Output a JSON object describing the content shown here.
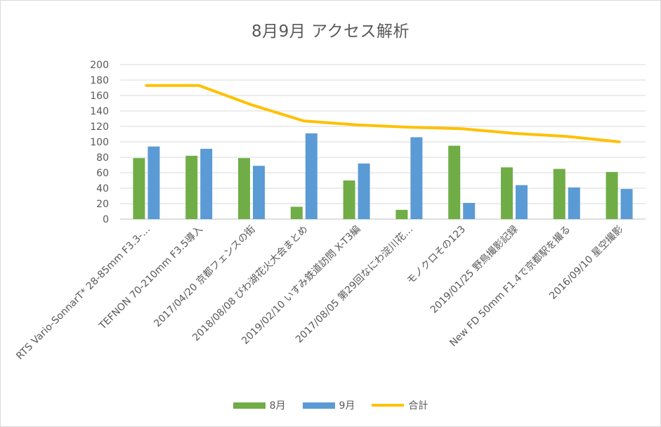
{
  "chart_data": {
    "type": "bar",
    "title": "8月9月 アクセス解析",
    "categories": [
      "RTS Vario-SonnarT* 28-85mm F3.3-…",
      "TEFNON 70-210mm F3.5導入",
      "2017/04/20 京都フェンスの街",
      "2018/08/08 びわ湖花火大会まとめ",
      "2019/02/10 いすみ鉄道訪問 X-T3編",
      "2017/08/05 第29回なにわ淀川花…",
      "モノクロその123",
      "2019/01/25 野鳥撮影記録",
      "New FD 50mm F1.4で京都駅を撮る",
      "2016/09/10 星空撮影"
    ],
    "series": [
      {
        "name": "8月",
        "type": "bar",
        "color": "#70ad47",
        "values": [
          79,
          82,
          79,
          16,
          50,
          12,
          95,
          67,
          65,
          61
        ]
      },
      {
        "name": "9月",
        "type": "bar",
        "color": "#5b9bd5",
        "values": [
          94,
          91,
          69,
          111,
          72,
          106,
          21,
          44,
          41,
          39
        ]
      },
      {
        "name": "合計",
        "type": "line",
        "color": "#ffc000",
        "values": [
          173,
          173,
          148,
          127,
          122,
          119,
          117,
          111,
          107,
          100
        ]
      }
    ],
    "y_ticks": [
      "0",
      "20",
      "40",
      "60",
      "80",
      "100",
      "120",
      "140",
      "160",
      "180",
      "200"
    ],
    "ylim": [
      0,
      200
    ],
    "grid": true,
    "legend_position": "bottom"
  }
}
